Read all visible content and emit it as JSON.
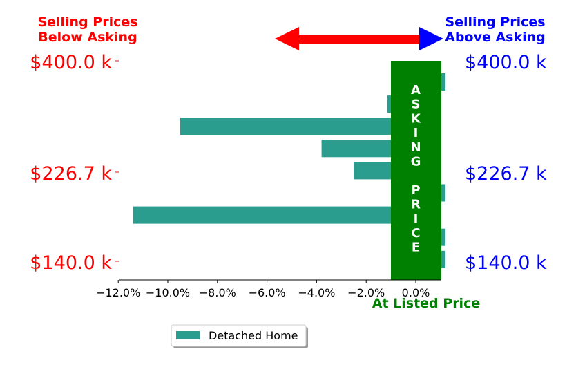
{
  "chart_data": {
    "type": "bar",
    "orientation": "horizontal",
    "header_left": [
      "Selling Prices",
      "Below Asking"
    ],
    "header_right": [
      "Selling Prices",
      "Above Asking"
    ],
    "y_tick_labels": [
      "$400.0 k",
      "$226.7 k",
      "$140.0 k"
    ],
    "x_tick_values": [
      -12,
      -10,
      -8,
      -6,
      -4,
      -2,
      0
    ],
    "x_tick_labels": [
      "−12.0%",
      "−10.0%",
      "−8.0%",
      "−6.0%",
      "−4.0%",
      "−2.0%",
      "0.0%"
    ],
    "xlim": [
      -13.0,
      1.2
    ],
    "xlabel": "At Listed Price",
    "overlay_letters": [
      "A",
      "S",
      "K",
      "I",
      "N",
      "G",
      "",
      "P",
      "R",
      "I",
      "C",
      "E"
    ],
    "series": [
      {
        "name": "Detached Home",
        "color": "#2a9d8f",
        "values": [
          1.2,
          -1.15,
          -9.5,
          -3.8,
          -2.5,
          1.2,
          -11.4,
          1.2,
          1.2
        ]
      }
    ],
    "legend_position": "bottom-center",
    "colors": {
      "below": "#ff0000",
      "above": "#0000ff",
      "asking": "#008000",
      "bar": "#2a9d8f"
    }
  }
}
